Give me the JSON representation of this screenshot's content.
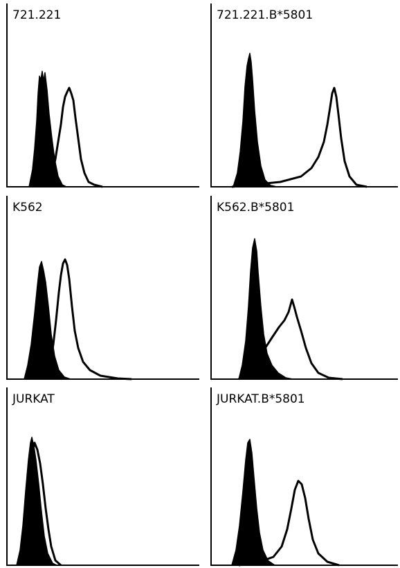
{
  "panels": [
    {
      "label": "721.221"
    },
    {
      "label": "721.221.B*5801"
    },
    {
      "label": "K562"
    },
    {
      "label": "K562.B*5801"
    },
    {
      "label": "JURKAT"
    },
    {
      "label": "JURKAT.B*5801"
    }
  ]
}
